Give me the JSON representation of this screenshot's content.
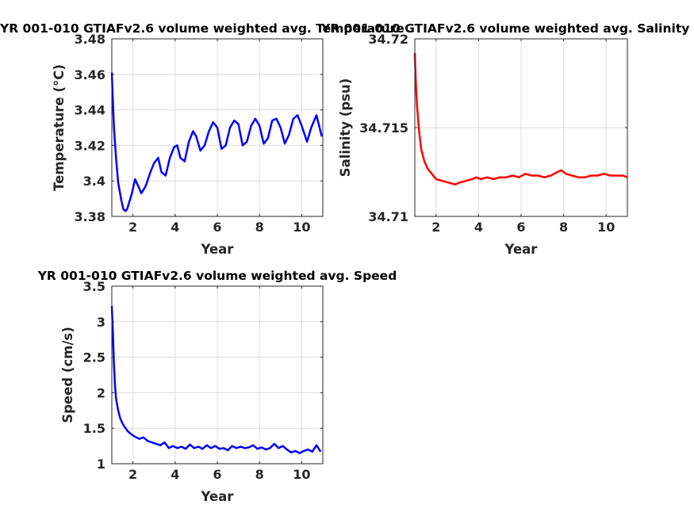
{
  "chart_data": [
    {
      "type": "line",
      "title": "YR 001-010 GTIAFv2.6 volume weighted avg. Temperature",
      "xlabel": "Year",
      "ylabel": "Temperature (°C)",
      "xlim": [
        1,
        11
      ],
      "ylim": [
        3.38,
        3.48
      ],
      "xticks": [
        2,
        4,
        6,
        8,
        10
      ],
      "yticks": [
        3.38,
        3.4,
        3.42,
        3.44,
        3.46,
        3.48
      ],
      "ytick_labels": [
        "3.38",
        "3.4",
        "3.42",
        "3.44",
        "3.46",
        "3.48"
      ],
      "grid": true,
      "color": "#0000ff",
      "series": [
        {
          "x": [
            1.0,
            1.05,
            1.1,
            1.2,
            1.3,
            1.45,
            1.55,
            1.65,
            1.72,
            1.8,
            1.95,
            2.1,
            2.25,
            2.4,
            2.6,
            2.8,
            3.0,
            3.2,
            3.35,
            3.55,
            3.75,
            3.95,
            4.1,
            4.25,
            4.45,
            4.65,
            4.85,
            5.0,
            5.2,
            5.4,
            5.6,
            5.8,
            6.0,
            6.2,
            6.4,
            6.6,
            6.8,
            7.0,
            7.2,
            7.4,
            7.6,
            7.8,
            8.0,
            8.2,
            8.4,
            8.6,
            8.8,
            9.0,
            9.2,
            9.4,
            9.6,
            9.8,
            10.0,
            10.25,
            10.45,
            10.7,
            10.95
          ],
          "y": [
            3.461,
            3.445,
            3.43,
            3.413,
            3.399,
            3.389,
            3.384,
            3.383,
            3.384,
            3.387,
            3.393,
            3.401,
            3.397,
            3.393,
            3.397,
            3.404,
            3.41,
            3.413,
            3.405,
            3.403,
            3.413,
            3.419,
            3.42,
            3.413,
            3.411,
            3.422,
            3.428,
            3.425,
            3.417,
            3.42,
            3.428,
            3.433,
            3.43,
            3.418,
            3.42,
            3.43,
            3.434,
            3.432,
            3.42,
            3.422,
            3.431,
            3.435,
            3.431,
            3.421,
            3.424,
            3.434,
            3.435,
            3.43,
            3.421,
            3.426,
            3.435,
            3.437,
            3.431,
            3.422,
            3.43,
            3.437,
            3.425
          ]
        }
      ]
    },
    {
      "type": "line",
      "title": "YR 001-010 GTIAFv2.6 volume weighted avg. Salinity",
      "xlabel": "Year",
      "ylabel": "Salinity (psu)",
      "xlim": [
        1,
        11
      ],
      "ylim": [
        34.71,
        34.72
      ],
      "xticks": [
        2,
        4,
        6,
        8,
        10
      ],
      "yticks": [
        34.71,
        34.715,
        34.72
      ],
      "ytick_labels": [
        "34.71",
        "34.715",
        "34.72"
      ],
      "grid": true,
      "color": "#ff0000",
      "series": [
        {
          "x": [
            1.0,
            1.05,
            1.1,
            1.2,
            1.3,
            1.45,
            1.6,
            1.8,
            2.0,
            2.3,
            2.6,
            2.9,
            3.1,
            3.4,
            3.7,
            3.9,
            4.1,
            4.4,
            4.7,
            5.0,
            5.3,
            5.6,
            5.9,
            6.2,
            6.5,
            6.8,
            7.1,
            7.4,
            7.7,
            7.9,
            8.1,
            8.4,
            8.7,
            9.0,
            9.3,
            9.6,
            9.9,
            10.2,
            10.5,
            10.8,
            11.0
          ],
          "y": [
            34.7192,
            34.7175,
            34.7163,
            34.7148,
            34.7138,
            34.7131,
            34.7127,
            34.7124,
            34.7121,
            34.712,
            34.7119,
            34.7118,
            34.7119,
            34.712,
            34.7121,
            34.7122,
            34.7121,
            34.7122,
            34.7121,
            34.7122,
            34.7122,
            34.7123,
            34.7122,
            34.7124,
            34.7123,
            34.7123,
            34.7122,
            34.7123,
            34.7125,
            34.7126,
            34.7124,
            34.7123,
            34.7122,
            34.7122,
            34.7123,
            34.7123,
            34.7124,
            34.7123,
            34.7123,
            34.7123,
            34.7122
          ]
        }
      ]
    },
    {
      "type": "line",
      "title": "YR 001-010 GTIAFv2.6 volume weighted avg. Speed",
      "xlabel": "Year",
      "ylabel": "Speed (cm/s)",
      "xlim": [
        1,
        11
      ],
      "ylim": [
        1,
        3.5
      ],
      "xticks": [
        2,
        4,
        6,
        8,
        10
      ],
      "yticks": [
        1,
        1.5,
        2,
        2.5,
        3,
        3.5
      ],
      "ytick_labels": [
        "1",
        "1.5",
        "2",
        "2.5",
        "3",
        "3.5"
      ],
      "grid": true,
      "color": "#0000ff",
      "series": [
        {
          "x": [
            1.0,
            1.05,
            1.1,
            1.15,
            1.2,
            1.3,
            1.4,
            1.5,
            1.6,
            1.75,
            1.9,
            2.1,
            2.3,
            2.5,
            2.7,
            2.9,
            3.1,
            3.3,
            3.5,
            3.7,
            3.9,
            4.1,
            4.3,
            4.5,
            4.7,
            4.9,
            5.1,
            5.3,
            5.5,
            5.7,
            5.9,
            6.1,
            6.3,
            6.5,
            6.7,
            6.9,
            7.1,
            7.3,
            7.5,
            7.7,
            7.9,
            8.1,
            8.3,
            8.5,
            8.7,
            8.9,
            9.1,
            9.3,
            9.5,
            9.7,
            9.9,
            10.1,
            10.3,
            10.5,
            10.7,
            10.9
          ],
          "y": [
            3.22,
            2.85,
            2.4,
            2.1,
            1.92,
            1.75,
            1.64,
            1.57,
            1.52,
            1.46,
            1.42,
            1.38,
            1.35,
            1.37,
            1.32,
            1.3,
            1.28,
            1.26,
            1.3,
            1.22,
            1.25,
            1.22,
            1.24,
            1.21,
            1.27,
            1.22,
            1.24,
            1.21,
            1.26,
            1.22,
            1.25,
            1.21,
            1.22,
            1.19,
            1.25,
            1.22,
            1.24,
            1.22,
            1.23,
            1.26,
            1.21,
            1.23,
            1.2,
            1.22,
            1.28,
            1.22,
            1.25,
            1.2,
            1.16,
            1.18,
            1.15,
            1.18,
            1.2,
            1.17,
            1.26,
            1.17
          ]
        }
      ]
    }
  ]
}
